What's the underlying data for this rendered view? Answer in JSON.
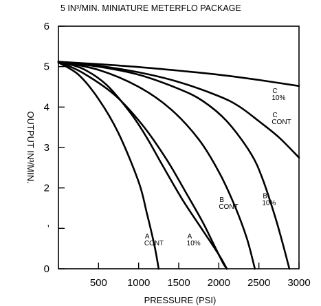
{
  "chart_data": {
    "type": "line",
    "title": "5 IN³/MIN. MINIATURE METERFLO PACKAGE",
    "xlabel": "PRESSURE (PSI)",
    "ylabel": "OUTPUT IN³/MIN.",
    "xlim": [
      0,
      3000
    ],
    "ylim": [
      0,
      6
    ],
    "x_ticks": [
      "500",
      "1000",
      "1500",
      "2000",
      "2500",
      "3000"
    ],
    "y_ticks": [
      "0",
      "’",
      "2",
      "3",
      "4",
      "5",
      "6"
    ],
    "grid": false,
    "series": [
      {
        "name": "C 10%",
        "label_lines": [
          "C",
          "10%"
        ],
        "label_at": [
          2660,
          4.35
        ],
        "x": [
          0,
          500,
          1000,
          1500,
          2000,
          2500,
          3000
        ],
        "y": [
          5.12,
          5.06,
          4.99,
          4.9,
          4.8,
          4.67,
          4.52
        ]
      },
      {
        "name": "C CONT",
        "label_lines": [
          "C",
          "CONT"
        ],
        "label_at": [
          2660,
          3.75
        ],
        "x": [
          0,
          500,
          1000,
          1500,
          2000,
          2250,
          2500,
          2750,
          3000
        ],
        "y": [
          5.12,
          5.02,
          4.86,
          4.62,
          4.27,
          4.02,
          3.65,
          3.25,
          2.75
        ]
      },
      {
        "name": "B 10%",
        "label_lines": [
          "B",
          "10%"
        ],
        "label_at": [
          2540,
          1.75
        ],
        "x": [
          0,
          500,
          1000,
          1500,
          1800,
          2100,
          2400,
          2550,
          2700,
          2800,
          2880
        ],
        "y": [
          5.12,
          5.0,
          4.8,
          4.45,
          4.15,
          3.65,
          2.85,
          2.2,
          1.3,
          0.6,
          0
        ]
      },
      {
        "name": "B CONT",
        "label_lines": [
          "B",
          "CONT"
        ],
        "label_at": [
          2000,
          1.65
        ],
        "x": [
          0,
          500,
          1000,
          1400,
          1750,
          2000,
          2200,
          2350,
          2450
        ],
        "y": [
          5.12,
          4.92,
          4.5,
          3.95,
          3.2,
          2.4,
          1.55,
          0.75,
          0
        ]
      },
      {
        "name": "A 10%",
        "label_lines": [
          "A",
          "10%"
        ],
        "label_at": [
          1600,
          0.75
        ],
        "x": [
          0,
          300,
          700,
          1050,
          1350,
          1600,
          1800,
          1950,
          2050,
          2100
        ],
        "y": [
          5.12,
          4.85,
          4.3,
          3.55,
          2.7,
          1.85,
          1.15,
          0.55,
          0.15,
          0
        ]
      },
      {
        "name": "A CONT",
        "label_lines": [
          "A",
          "CONT"
        ],
        "label_at": [
          1070,
          0.75
        ],
        "x": [
          0,
          250,
          500,
          750,
          1000,
          1100,
          1200,
          1250
        ],
        "y": [
          5.1,
          4.8,
          4.2,
          3.35,
          2.15,
          1.4,
          0.55,
          0
        ]
      },
      {
        "name": "",
        "x": [
          0,
          300,
          600,
          900,
          1100,
          1300,
          1550,
          1800,
          2000,
          2100
        ],
        "y": [
          5.12,
          4.95,
          4.55,
          3.85,
          3.25,
          2.55,
          1.7,
          0.95,
          0.35,
          0
        ]
      }
    ]
  }
}
